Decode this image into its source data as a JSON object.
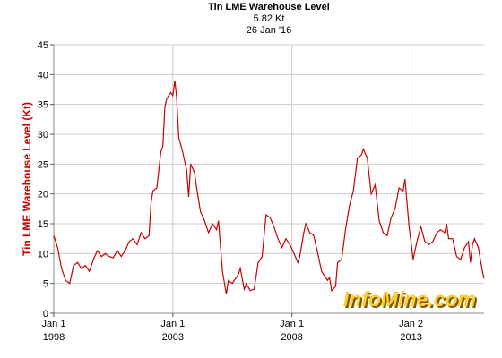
{
  "chart_data": {
    "type": "line",
    "title": "Tin LME Warehouse Level",
    "subtitle_value": "5.82 Kt",
    "subtitle_date": "26 Jan '16",
    "ylabel": "Tin LME Warehouse Level (Kt)",
    "xlabel": "",
    "ylim": [
      0,
      45
    ],
    "yticks": [
      0,
      5,
      10,
      15,
      20,
      25,
      30,
      35,
      40,
      45
    ],
    "xlim": [
      "1998-01-01",
      "2016-01-26"
    ],
    "xticks": [
      {
        "date": "1998-01-01",
        "label1": "Jan 1",
        "label2": "1998"
      },
      {
        "date": "2003-01-01",
        "label1": "Jan 1",
        "label2": "2003"
      },
      {
        "date": "2008-01-01",
        "label1": "Jan 1",
        "label2": "2008"
      },
      {
        "date": "2013-01-02",
        "label1": "Jan 2",
        "label2": "2013"
      }
    ],
    "grid": true,
    "line_color": "#c80000",
    "series": [
      {
        "points": [
          [
            "1998-01-01",
            13.0
          ],
          [
            "1998-03-01",
            11.0
          ],
          [
            "1998-05-01",
            7.5
          ],
          [
            "1998-07-01",
            5.5
          ],
          [
            "1998-09-01",
            5.0
          ],
          [
            "1998-11-01",
            8.0
          ],
          [
            "1999-01-01",
            8.5
          ],
          [
            "1999-03-01",
            7.5
          ],
          [
            "1999-05-01",
            8.0
          ],
          [
            "1999-07-01",
            7.0
          ],
          [
            "1999-09-01",
            9.0
          ],
          [
            "1999-11-01",
            10.5
          ],
          [
            "2000-01-01",
            9.5
          ],
          [
            "2000-03-01",
            10.0
          ],
          [
            "2000-05-01",
            9.5
          ],
          [
            "2000-07-01",
            9.3
          ],
          [
            "2000-09-01",
            10.5
          ],
          [
            "2000-11-01",
            9.5
          ],
          [
            "2001-01-01",
            10.5
          ],
          [
            "2001-03-01",
            12.0
          ],
          [
            "2001-05-01",
            12.5
          ],
          [
            "2001-07-01",
            11.5
          ],
          [
            "2001-09-01",
            13.5
          ],
          [
            "2001-11-01",
            12.5
          ],
          [
            "2002-01-01",
            13.0
          ],
          [
            "2002-02-01",
            18.5
          ],
          [
            "2002-03-01",
            20.5
          ],
          [
            "2002-05-01",
            21.0
          ],
          [
            "2002-07-01",
            27.0
          ],
          [
            "2002-08-01",
            28.0
          ],
          [
            "2002-09-01",
            34.5
          ],
          [
            "2002-10-01",
            36.0
          ],
          [
            "2002-12-01",
            37.0
          ],
          [
            "2003-01-01",
            36.5
          ],
          [
            "2003-02-01",
            39.0
          ],
          [
            "2003-03-01",
            36.0
          ],
          [
            "2003-04-01",
            29.5
          ],
          [
            "2003-06-01",
            27.0
          ],
          [
            "2003-08-01",
            24.0
          ],
          [
            "2003-09-01",
            19.5
          ],
          [
            "2003-10-01",
            25.0
          ],
          [
            "2003-12-01",
            23.5
          ],
          [
            "2004-01-01",
            21.0
          ],
          [
            "2004-03-01",
            17.0
          ],
          [
            "2004-05-01",
            15.5
          ],
          [
            "2004-07-01",
            13.5
          ],
          [
            "2004-09-01",
            15.0
          ],
          [
            "2004-11-01",
            14.0
          ],
          [
            "2004-12-01",
            15.5
          ],
          [
            "2005-02-01",
            7.0
          ],
          [
            "2005-04-01",
            3.2
          ],
          [
            "2005-05-01",
            5.5
          ],
          [
            "2005-07-01",
            5.0
          ],
          [
            "2005-08-01",
            5.5
          ],
          [
            "2005-10-01",
            6.5
          ],
          [
            "2005-11-01",
            7.5
          ],
          [
            "2006-01-01",
            4.0
          ],
          [
            "2006-02-01",
            5.0
          ],
          [
            "2006-04-01",
            3.8
          ],
          [
            "2006-06-01",
            4.0
          ],
          [
            "2006-08-01",
            8.5
          ],
          [
            "2006-10-01",
            9.5
          ],
          [
            "2006-12-01",
            16.5
          ],
          [
            "2007-02-01",
            16.0
          ],
          [
            "2007-04-01",
            14.5
          ],
          [
            "2007-06-01",
            12.5
          ],
          [
            "2007-08-01",
            11.0
          ],
          [
            "2007-10-01",
            12.5
          ],
          [
            "2007-12-01",
            11.5
          ],
          [
            "2008-02-01",
            10.0
          ],
          [
            "2008-04-01",
            8.5
          ],
          [
            "2008-05-01",
            9.5
          ],
          [
            "2008-07-01",
            13.5
          ],
          [
            "2008-08-01",
            15.0
          ],
          [
            "2008-10-01",
            13.5
          ],
          [
            "2008-12-01",
            13.0
          ],
          [
            "2009-02-01",
            10.0
          ],
          [
            "2009-04-01",
            7.0
          ],
          [
            "2009-06-01",
            6.0
          ],
          [
            "2009-07-01",
            5.5
          ],
          [
            "2009-08-01",
            6.0
          ],
          [
            "2009-09-01",
            3.8
          ],
          [
            "2009-11-01",
            4.5
          ],
          [
            "2009-12-01",
            8.5
          ],
          [
            "2010-02-01",
            9.0
          ],
          [
            "2010-04-01",
            14.0
          ],
          [
            "2010-06-01",
            18.0
          ],
          [
            "2010-08-01",
            20.5
          ],
          [
            "2010-10-01",
            26.0
          ],
          [
            "2010-12-01",
            26.5
          ],
          [
            "2011-01-01",
            27.5
          ],
          [
            "2011-03-01",
            26.0
          ],
          [
            "2011-05-01",
            20.0
          ],
          [
            "2011-07-01",
            21.5
          ],
          [
            "2011-09-01",
            15.5
          ],
          [
            "2011-11-01",
            13.5
          ],
          [
            "2012-01-01",
            13.0
          ],
          [
            "2012-03-01",
            16.0
          ],
          [
            "2012-05-01",
            17.5
          ],
          [
            "2012-07-01",
            21.0
          ],
          [
            "2012-09-01",
            20.5
          ],
          [
            "2012-10-01",
            22.5
          ],
          [
            "2012-12-01",
            14.5
          ],
          [
            "2013-01-01",
            12.0
          ],
          [
            "2013-02-01",
            9.0
          ],
          [
            "2013-04-01",
            12.0
          ],
          [
            "2013-06-01",
            14.5
          ],
          [
            "2013-08-01",
            12.0
          ],
          [
            "2013-10-01",
            11.5
          ],
          [
            "2013-12-01",
            12.0
          ],
          [
            "2014-02-01",
            13.5
          ],
          [
            "2014-04-01",
            14.0
          ],
          [
            "2014-06-01",
            13.5
          ],
          [
            "2014-07-01",
            15.0
          ],
          [
            "2014-08-01",
            12.5
          ],
          [
            "2014-10-01",
            12.5
          ],
          [
            "2014-12-01",
            9.5
          ],
          [
            "2015-02-01",
            9.0
          ],
          [
            "2015-04-01",
            11.0
          ],
          [
            "2015-06-01",
            12.0
          ],
          [
            "2015-07-01",
            8.5
          ],
          [
            "2015-08-01",
            11.5
          ],
          [
            "2015-09-01",
            12.5
          ],
          [
            "2015-11-01",
            11.0
          ],
          [
            "2015-12-01",
            9.0
          ],
          [
            "2016-01-01",
            7.0
          ],
          [
            "2016-01-26",
            5.82
          ]
        ]
      }
    ]
  },
  "watermark": {
    "text": "InfoMine.com",
    "color": "#ffcc33",
    "shadow_color": "#7a5a00"
  }
}
